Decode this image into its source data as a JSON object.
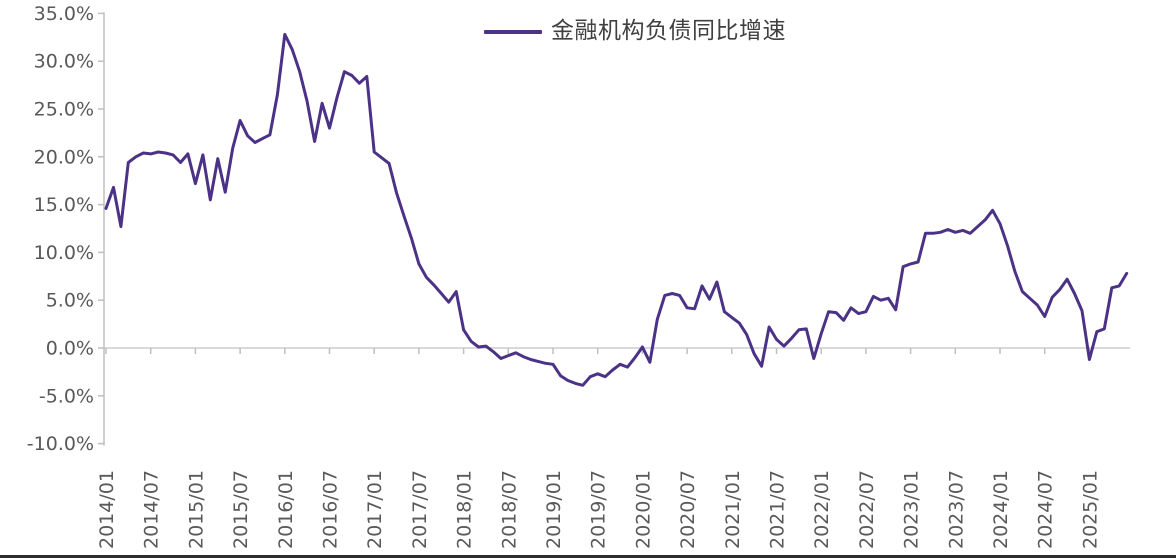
{
  "legend": {
    "label": "金融机构负债同比增速",
    "color": "#4B3286"
  },
  "chart_data": {
    "type": "line",
    "title": "",
    "xlabel": "",
    "ylabel": "",
    "legend_position": "top-center",
    "grid": "horizontal zero line only",
    "ylim": [
      -10,
      35
    ],
    "y_tick_labels": [
      "35.0%",
      "30.0%",
      "25.0%",
      "20.0%",
      "15.0%",
      "10.0%",
      "5.0%",
      "0.0%",
      "-5.0%",
      "-10.0%"
    ],
    "y_tick_values": [
      35,
      30,
      25,
      20,
      15,
      10,
      5,
      0,
      -5,
      -10
    ],
    "x_tick_labels": [
      "2014/01",
      "2014/07",
      "2015/01",
      "2015/07",
      "2016/01",
      "2016/07",
      "2017/01",
      "2017/07",
      "2018/01",
      "2018/07",
      "2019/01",
      "2019/07",
      "2020/01",
      "2020/07",
      "2021/01",
      "2021/07",
      "2022/01",
      "2022/07",
      "2023/01",
      "2023/07",
      "2024/01",
      "2024/07",
      "2025/01"
    ],
    "x_start": "2014/01",
    "x_frequency": "monthly",
    "series": [
      {
        "name": "金融机构负债同比增速",
        "color": "#4B3286",
        "unit": "%",
        "values": [
          14.6,
          16.8,
          12.7,
          19.4,
          20.0,
          20.4,
          20.3,
          20.5,
          20.4,
          20.2,
          19.4,
          20.3,
          17.2,
          20.2,
          15.5,
          19.8,
          16.3,
          20.9,
          23.8,
          22.2,
          21.5,
          21.9,
          22.3,
          26.5,
          32.8,
          31.2,
          28.9,
          25.8,
          21.6,
          25.6,
          23.0,
          26.2,
          28.9,
          28.5,
          27.7,
          28.4,
          20.5,
          19.9,
          19.3,
          16.2,
          13.8,
          11.5,
          8.8,
          7.4,
          6.6,
          5.7,
          4.8,
          5.9,
          1.9,
          0.7,
          0.1,
          0.2,
          -0.4,
          -1.1,
          -0.8,
          -0.5,
          -0.9,
          -1.2,
          -1.4,
          -1.6,
          -1.7,
          -2.9,
          -3.4,
          -3.7,
          -3.9,
          -3.0,
          -2.7,
          -3.0,
          -2.3,
          -1.7,
          -2.0,
          -1.0,
          0.1,
          -1.5,
          3.0,
          5.5,
          5.7,
          5.5,
          4.2,
          4.1,
          6.5,
          5.1,
          6.9,
          3.8,
          3.2,
          2.6,
          1.4,
          -0.6,
          -1.9,
          2.2,
          0.9,
          0.2,
          1.0,
          1.9,
          2.0,
          -1.1,
          1.5,
          3.8,
          3.7,
          2.9,
          4.2,
          3.6,
          3.8,
          5.4,
          5.0,
          5.2,
          4.0,
          8.5,
          8.8,
          9.0,
          12.0,
          12.0,
          12.1,
          12.4,
          12.1,
          12.3,
          12.0,
          12.7,
          13.4,
          14.4,
          13.0,
          10.7,
          8.0,
          5.9,
          5.2,
          4.5,
          3.3,
          5.3,
          6.1,
          7.2,
          5.7,
          3.9,
          -1.2,
          1.7,
          2.0,
          6.3,
          6.5,
          7.8
        ]
      }
    ]
  },
  "colors": {
    "line": "#4B3286",
    "axis": "#bfbfbf",
    "zero_gridline": "#d9d9d9",
    "tick_text": "#595959",
    "legend_text": "#404040",
    "bottom_rule": "#2e2e2e"
  }
}
